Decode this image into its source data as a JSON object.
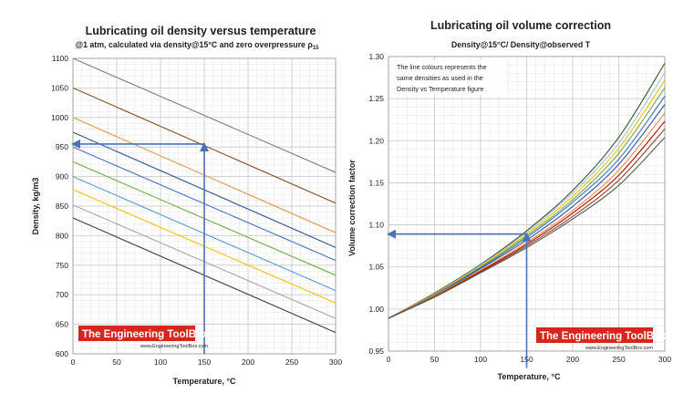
{
  "charts": {
    "left": {
      "title": "Lubricating oil density versus temperature",
      "subtitle": "@1 atm, calculated via density@15°C and zero overpressure ρ",
      "subtitle_sub": "15",
      "xlabel": "Temperature, °C",
      "ylabel": "Density, kg/m3",
      "watermark": "The Engineering ToolBox",
      "watermark_url": "www.EngineeringToolBox.com"
    },
    "right": {
      "title": "Lubricating oil volume correction",
      "subtitle": "Density@15°C/ Density@observed T",
      "xlabel": "Temperature, °C",
      "ylabel": "Volume correction factor",
      "note": [
        "The line colours represents the",
        "same densities as used in the",
        "Density vs Temperature figure"
      ],
      "watermark": "The Engineering ToolBox",
      "watermark_url": "www.EngineeringToolBox.com"
    }
  },
  "chart_data": [
    {
      "type": "line",
      "title": "Lubricating oil density versus temperature",
      "subtitle": "@1 atm, calculated via density@15°C and zero overpressure ρ15",
      "xlabel": "Temperature, °C",
      "ylabel": "Density, kg/m3",
      "xlim": [
        0,
        300
      ],
      "ylim": [
        600,
        1100
      ],
      "xticks": [
        0,
        50,
        100,
        150,
        200,
        250,
        300
      ],
      "yticks": [
        600,
        650,
        700,
        750,
        800,
        850,
        900,
        950,
        1000,
        1050,
        1100
      ],
      "grid": true,
      "series": [
        {
          "color": "#7f7f7f",
          "x": [
            0,
            300
          ],
          "y": [
            1100,
            907
          ]
        },
        {
          "color": "#8b4a1c",
          "x": [
            0,
            300
          ],
          "y": [
            1050,
            855
          ]
        },
        {
          "color": "#e3934b",
          "x": [
            0,
            300
          ],
          "y": [
            1000,
            805
          ]
        },
        {
          "color": "#2f5597",
          "x": [
            0,
            300
          ],
          "y": [
            975,
            780
          ]
        },
        {
          "color": "#4472c4",
          "x": [
            0,
            300
          ],
          "y": [
            950,
            758
          ]
        },
        {
          "color": "#70ad47",
          "x": [
            0,
            300
          ],
          "y": [
            925,
            733
          ]
        },
        {
          "color": "#5b9bd5",
          "x": [
            0,
            300
          ],
          "y": [
            900,
            707
          ]
        },
        {
          "color": "#ffc000",
          "x": [
            0,
            300
          ],
          "y": [
            878,
            686
          ]
        },
        {
          "color": "#a5a5a5",
          "x": [
            0,
            300
          ],
          "y": [
            852,
            660
          ]
        },
        {
          "color": "#404040",
          "x": [
            0,
            300
          ],
          "y": [
            830,
            636
          ]
        }
      ],
      "annotations": [
        {
          "type": "arrow",
          "from": [
            150,
            600
          ],
          "to": [
            150,
            955
          ]
        },
        {
          "type": "arrow",
          "from": [
            150,
            955
          ],
          "to": [
            0,
            955
          ]
        }
      ]
    },
    {
      "type": "line",
      "title": "Lubricating oil volume correction",
      "subtitle": "Density@15°C/ Density@observed T",
      "xlabel": "Temperature, °C",
      "ylabel": "Volume correction factor",
      "xlim": [
        0,
        300
      ],
      "ylim": [
        0.95,
        1.3
      ],
      "xticks": [
        0,
        50,
        100,
        150,
        200,
        250,
        300
      ],
      "yticks": [
        0.95,
        1.0,
        1.05,
        1.1,
        1.15,
        1.2,
        1.25,
        1.3
      ],
      "grid": true,
      "series": [
        {
          "color": "#375623",
          "x": [
            0,
            50,
            100,
            150,
            200,
            250,
            300
          ],
          "y": [
            0.989,
            1.019,
            1.053,
            1.093,
            1.141,
            1.204,
            1.292
          ]
        },
        {
          "color": "#9dc3e6",
          "x": [
            0,
            50,
            100,
            150,
            200,
            250,
            300
          ],
          "y": [
            0.989,
            1.018,
            1.052,
            1.091,
            1.138,
            1.197,
            1.281
          ]
        },
        {
          "color": "#ffc000",
          "x": [
            0,
            50,
            100,
            150,
            200,
            250,
            300
          ],
          "y": [
            0.989,
            1.018,
            1.051,
            1.089,
            1.134,
            1.191,
            1.272
          ]
        },
        {
          "color": "#70ad47",
          "x": [
            0,
            50,
            100,
            150,
            200,
            250,
            300
          ],
          "y": [
            0.989,
            1.017,
            1.05,
            1.087,
            1.13,
            1.185,
            1.263
          ]
        },
        {
          "color": "#4472c4",
          "x": [
            0,
            50,
            100,
            150,
            200,
            250,
            300
          ],
          "y": [
            0.989,
            1.017,
            1.049,
            1.085,
            1.127,
            1.178,
            1.253
          ]
        },
        {
          "color": "#2f5597",
          "x": [
            0,
            50,
            100,
            150,
            200,
            250,
            300
          ],
          "y": [
            0.989,
            1.016,
            1.048,
            1.082,
            1.122,
            1.172,
            1.243
          ]
        },
        {
          "color": "#e3934b",
          "x": [
            0,
            50,
            100,
            150,
            200,
            250,
            300
          ],
          "y": [
            0.989,
            1.016,
            1.046,
            1.079,
            1.117,
            1.165,
            1.233
          ]
        },
        {
          "color": "#c00000",
          "x": [
            0,
            50,
            100,
            150,
            200,
            250,
            300
          ],
          "y": [
            0.989,
            1.015,
            1.045,
            1.077,
            1.114,
            1.159,
            1.223
          ]
        },
        {
          "color": "#8b4a1c",
          "x": [
            0,
            50,
            100,
            150,
            200,
            250,
            300
          ],
          "y": [
            0.989,
            1.015,
            1.044,
            1.075,
            1.11,
            1.153,
            1.214
          ]
        },
        {
          "color": "#595959",
          "x": [
            0,
            50,
            100,
            150,
            200,
            250,
            300
          ],
          "y": [
            0.989,
            1.014,
            1.043,
            1.073,
            1.107,
            1.147,
            1.204
          ]
        }
      ],
      "annotations": [
        {
          "type": "arrow",
          "from": [
            150,
            0.93
          ],
          "to": [
            150,
            1.089
          ]
        },
        {
          "type": "arrow",
          "from": [
            150,
            1.089
          ],
          "to": [
            0,
            1.089
          ]
        }
      ]
    }
  ],
  "colors": {
    "arrow": "#4a72b8",
    "watermark_bg": "#d8261d",
    "grid_major": "#c9c9c9",
    "grid_minor": "#e6e6e6"
  }
}
